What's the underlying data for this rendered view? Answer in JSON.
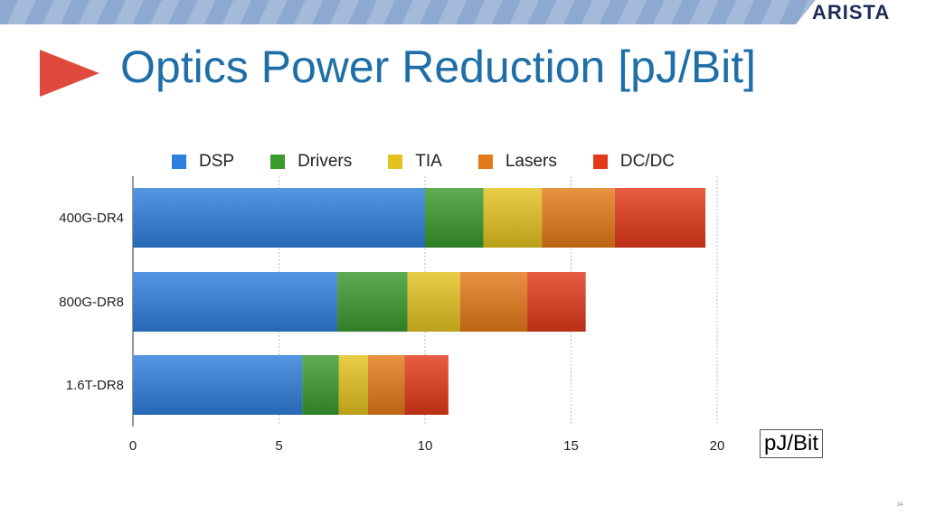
{
  "header": {
    "logo": "ARISTA",
    "title": "Optics Power Reduction [pJ/Bit]",
    "page_number": "34"
  },
  "chart_data": {
    "type": "bar",
    "orientation": "horizontal",
    "stacked": true,
    "title": "Optics Power Reduction [pJ/Bit]",
    "xlabel": "pJ/Bit",
    "categories": [
      "400G-DR4",
      "800G-DR8",
      "1.6T-DR8"
    ],
    "series": [
      {
        "name": "DSP",
        "color": "#2f7fdc",
        "values": [
          10,
          7,
          5.8
        ]
      },
      {
        "name": "Drivers",
        "color": "#3a9a2e",
        "values": [
          2,
          2.4,
          1.25
        ]
      },
      {
        "name": "TIA",
        "color": "#e3c21f",
        "values": [
          2,
          1.8,
          1.0
        ]
      },
      {
        "name": "Lasers",
        "color": "#e47a17",
        "values": [
          2.5,
          2.3,
          1.25
        ]
      },
      {
        "name": "DC/DC",
        "color": "#e2391a",
        "values": [
          3.1,
          2.0,
          1.5
        ]
      }
    ],
    "xlim": [
      0,
      20
    ],
    "xticks": [
      "0",
      "5",
      "10",
      "15",
      "20"
    ],
    "grid": true,
    "legend_position": "top"
  }
}
